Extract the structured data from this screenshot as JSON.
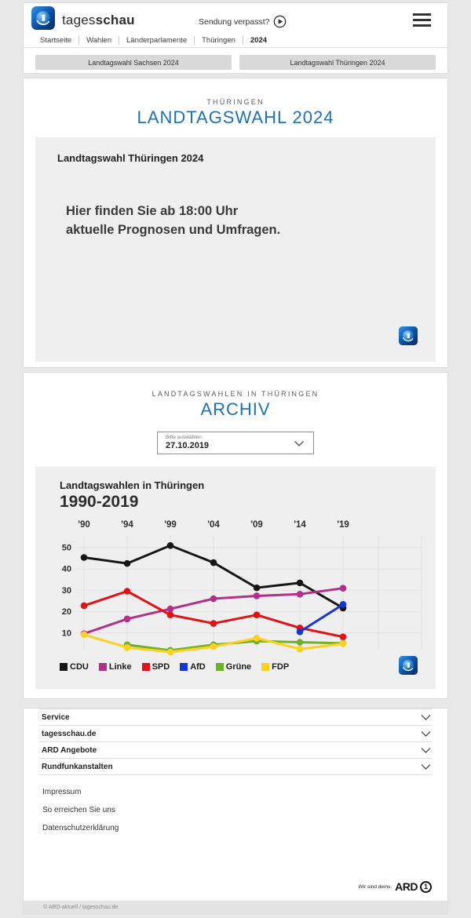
{
  "colors": {
    "accent_blue": "#1c72b4",
    "page_bg": "#e8e8e8",
    "box_bg": "#efefef",
    "button_bg": "#d9d9d9"
  },
  "header": {
    "brand_regular": "tages",
    "brand_bold": "schau",
    "sendung_verpasst": "Sendung verpasst?",
    "nav": [
      "Startseite",
      "Wahlen",
      "Länderparlamente",
      "Thüringen",
      "2024"
    ],
    "buttons": [
      "Landtagswahl Sachsen 2024",
      "Landtagswahl Thüringen 2024"
    ]
  },
  "wahl_section": {
    "kicker": "THÜRINGEN",
    "title": "LANDTAGSWAHL 2024",
    "box_heading": "Landtagswahl Thüringen 2024",
    "message_line1": "Hier finden Sie ab 18:00 Uhr",
    "message_line2": "aktuelle Prognosen und Umfragen."
  },
  "archiv_section": {
    "kicker": "LANDTAGSWAHLEN IN THÜRINGEN",
    "title": "ARCHIV",
    "select": {
      "label": "Bitte auswählen",
      "value": "27.10.2019"
    }
  },
  "chart_data": {
    "type": "line",
    "title": "Landtagswahlen in Thüringen",
    "subtitle": "1990-2019",
    "categories": [
      "'90",
      "'94",
      "'99",
      "'04",
      "'09",
      "'14",
      "'19"
    ],
    "years": [
      1990,
      1994,
      1999,
      2004,
      2009,
      2014,
      2019
    ],
    "xlabel": "",
    "ylabel": "",
    "y_ticks": [
      10,
      20,
      30,
      40,
      50
    ],
    "ylim": [
      0,
      55
    ],
    "grid": true,
    "legend_position": "bottom",
    "series": [
      {
        "name": "CDU",
        "color": "#161616",
        "values": [
          45.4,
          42.6,
          51.0,
          43.0,
          31.2,
          33.5,
          21.7
        ]
      },
      {
        "name": "Linke",
        "color": "#b23087",
        "values": [
          9.7,
          16.6,
          21.3,
          26.1,
          27.4,
          28.2,
          31.0
        ]
      },
      {
        "name": "SPD",
        "color": "#e21118",
        "values": [
          22.8,
          29.6,
          18.5,
          14.5,
          18.5,
          12.4,
          8.2
        ]
      },
      {
        "name": "AfD",
        "color": "#1635d2",
        "values": [
          null,
          null,
          null,
          null,
          null,
          10.6,
          23.4
        ]
      },
      {
        "name": "Grüne",
        "color": "#70b02a",
        "values": [
          null,
          4.5,
          1.9,
          4.5,
          6.2,
          5.7,
          5.2
        ]
      },
      {
        "name": "FDP",
        "color": "#fdd11f",
        "values": [
          9.3,
          3.2,
          1.1,
          3.6,
          7.6,
          2.5,
          5.0
        ]
      }
    ]
  },
  "footer": {
    "accordions": [
      "Service",
      "tagesschau.de",
      "ARD Angebote",
      "Rundfunkanstalten"
    ],
    "links": [
      "Impressum",
      "So erreichen Sie uns",
      "Datenschutzerklärung"
    ],
    "ard_claim": "Wir sind deins.",
    "ard_brand": "ARD",
    "ard_one": "1",
    "copyright": "© ARD-aktuell / tagesschau.de"
  }
}
